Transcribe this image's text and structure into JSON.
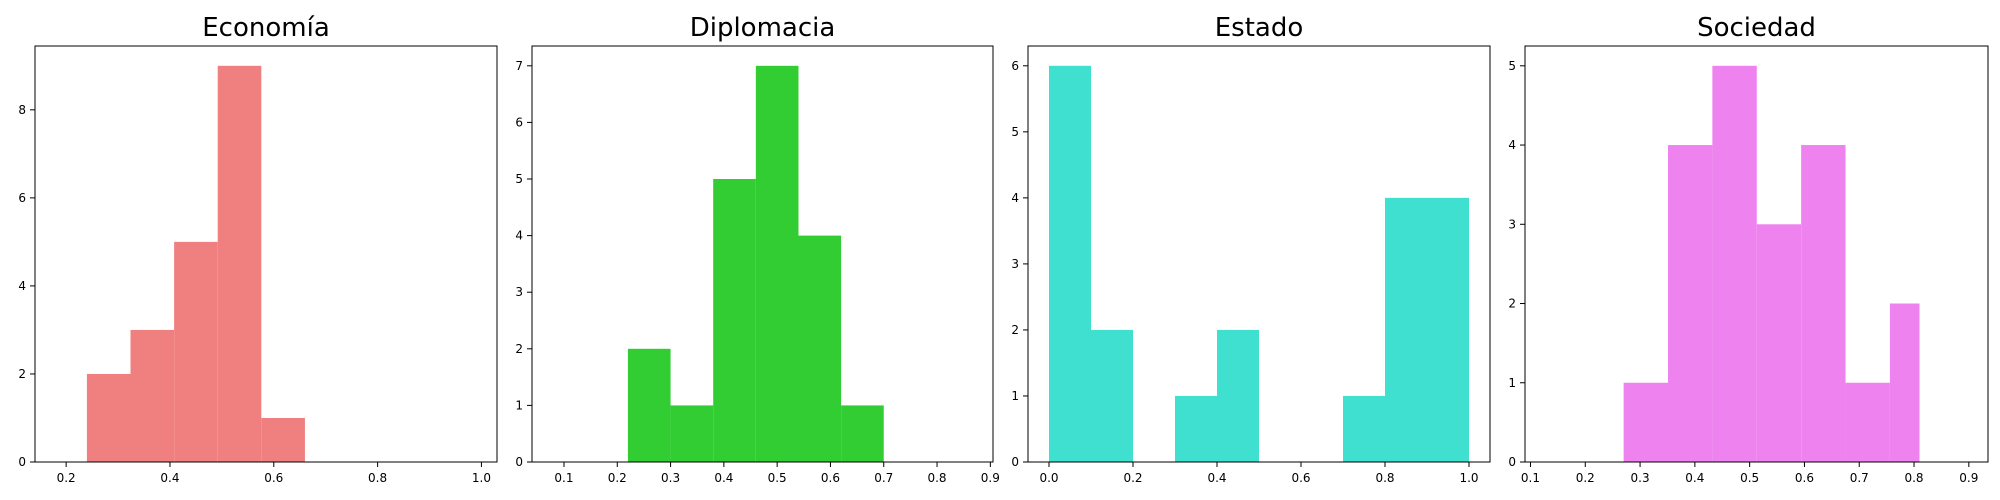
{
  "chart_data": [
    {
      "type": "bar",
      "subtype": "histogram",
      "title": "Economía",
      "color": "#f08080",
      "xlim": [
        0.14,
        1.03
      ],
      "ylim": [
        0,
        9.45
      ],
      "xticks": [
        0.2,
        0.4,
        0.6,
        0.8,
        1.0
      ],
      "xtick_labels": [
        "0.2",
        "0.4",
        "0.6",
        "0.8",
        "1.0"
      ],
      "yticks": [
        0,
        2,
        4,
        6,
        8
      ],
      "ytick_labels": [
        "0",
        "2",
        "4",
        "6",
        "8"
      ],
      "bins": [
        {
          "x0": 0.24,
          "x1": 0.324,
          "count": 2
        },
        {
          "x0": 0.324,
          "x1": 0.408,
          "count": 3
        },
        {
          "x0": 0.408,
          "x1": 0.492,
          "count": 5
        },
        {
          "x0": 0.492,
          "x1": 0.576,
          "count": 9
        },
        {
          "x0": 0.576,
          "x1": 0.66,
          "count": 1
        }
      ]
    },
    {
      "type": "bar",
      "subtype": "histogram",
      "title": "Diplomacia",
      "color": "#32cd32",
      "xlim": [
        0.04,
        0.905
      ],
      "ylim": [
        0,
        7.35
      ],
      "xticks": [
        0.1,
        0.2,
        0.3,
        0.4,
        0.5,
        0.6,
        0.7,
        0.8,
        0.9
      ],
      "xtick_labels": [
        "0.1",
        "0.2",
        "0.3",
        "0.4",
        "0.5",
        "0.6",
        "0.7",
        "0.8",
        "0.9"
      ],
      "yticks": [
        0,
        1,
        2,
        3,
        4,
        5,
        6,
        7
      ],
      "ytick_labels": [
        "0",
        "1",
        "2",
        "3",
        "4",
        "5",
        "6",
        "7"
      ],
      "bins": [
        {
          "x0": 0.22,
          "x1": 0.3,
          "count": 2
        },
        {
          "x0": 0.3,
          "x1": 0.38,
          "count": 1
        },
        {
          "x0": 0.38,
          "x1": 0.46,
          "count": 5
        },
        {
          "x0": 0.46,
          "x1": 0.54,
          "count": 7
        },
        {
          "x0": 0.54,
          "x1": 0.62,
          "count": 4
        },
        {
          "x0": 0.62,
          "x1": 0.7,
          "count": 1
        }
      ]
    },
    {
      "type": "bar",
      "subtype": "histogram",
      "title": "Estado",
      "color": "#40e0d0",
      "xlim": [
        -0.05,
        1.05
      ],
      "ylim": [
        0,
        6.3
      ],
      "xticks": [
        0.0,
        0.2,
        0.4,
        0.6,
        0.8,
        1.0
      ],
      "xtick_labels": [
        "0.0",
        "0.2",
        "0.4",
        "0.6",
        "0.8",
        "1.0"
      ],
      "yticks": [
        0,
        1,
        2,
        3,
        4,
        5,
        6
      ],
      "ytick_labels": [
        "0",
        "1",
        "2",
        "3",
        "4",
        "5",
        "6"
      ],
      "bins": [
        {
          "x0": 0.0,
          "x1": 0.1,
          "count": 6
        },
        {
          "x0": 0.1,
          "x1": 0.2,
          "count": 2
        },
        {
          "x0": 0.2,
          "x1": 0.3,
          "count": 0
        },
        {
          "x0": 0.3,
          "x1": 0.4,
          "count": 1
        },
        {
          "x0": 0.4,
          "x1": 0.5,
          "count": 2
        },
        {
          "x0": 0.5,
          "x1": 0.6,
          "count": 0
        },
        {
          "x0": 0.6,
          "x1": 0.7,
          "count": 0
        },
        {
          "x0": 0.7,
          "x1": 0.8,
          "count": 1
        },
        {
          "x0": 0.8,
          "x1": 0.9,
          "count": 4
        },
        {
          "x0": 0.9,
          "x1": 1.0,
          "count": 4
        }
      ]
    },
    {
      "type": "bar",
      "subtype": "histogram",
      "title": "Sociedad",
      "color": "#ee82ee",
      "xlim": [
        0.09,
        0.935
      ],
      "ylim": [
        0,
        5.25
      ],
      "xticks": [
        0.1,
        0.2,
        0.3,
        0.4,
        0.5,
        0.6,
        0.7,
        0.8,
        0.9
      ],
      "xtick_labels": [
        "0.1",
        "0.2",
        "0.3",
        "0.4",
        "0.5",
        "0.6",
        "0.7",
        "0.8",
        "0.9"
      ],
      "yticks": [
        0,
        1,
        2,
        3,
        4,
        5
      ],
      "ytick_labels": [
        "0",
        "1",
        "2",
        "3",
        "4",
        "5"
      ],
      "bins": [
        {
          "x0": 0.27,
          "x1": 0.351,
          "count": 1
        },
        {
          "x0": 0.351,
          "x1": 0.432,
          "count": 4
        },
        {
          "x0": 0.432,
          "x1": 0.513,
          "count": 5
        },
        {
          "x0": 0.513,
          "x1": 0.594,
          "count": 3
        },
        {
          "x0": 0.594,
          "x1": 0.675,
          "count": 4
        },
        {
          "x0": 0.675,
          "x1": 0.756,
          "count": 1
        },
        {
          "x0": 0.756,
          "x1": 0.81,
          "count": 2
        }
      ]
    }
  ]
}
